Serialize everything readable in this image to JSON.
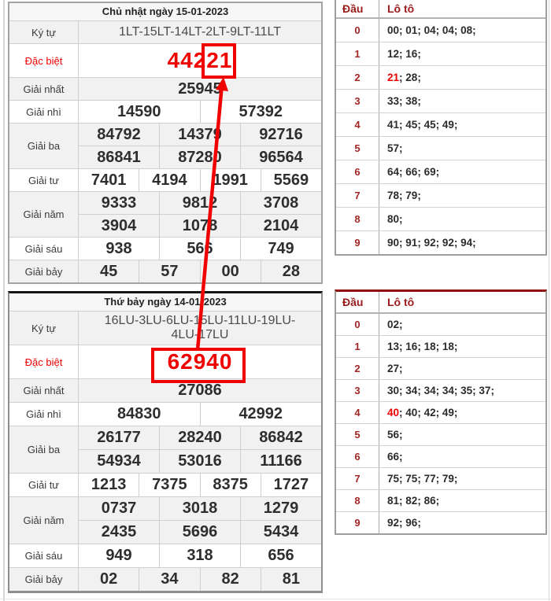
{
  "colors": {
    "annotation_red": "#f10000",
    "special_red": "#f10000",
    "dau_dark_red": "#9a1b1b",
    "bottom_table_top_border": "#8f0e0e"
  },
  "draw_tables": [
    {
      "title": "Chủ nhật ngày 15-01-2023",
      "ky_tu_label": "Ký tự",
      "ky_tu": "1LT-15LT-14LT-2LT-9LT-11LT",
      "rows": [
        {
          "key": "dac-biet",
          "label": "Đặc biệt",
          "special": true,
          "lines": [
            [
              "44221"
            ]
          ]
        },
        {
          "key": "giai-nhat",
          "label": "Giải nhất",
          "lines": [
            [
              "25945"
            ]
          ]
        },
        {
          "key": "giai-nhi",
          "label": "Giải nhì",
          "lines": [
            [
              "14590",
              "57392"
            ]
          ]
        },
        {
          "key": "giai-ba",
          "label": "Giải ba",
          "lines": [
            [
              "84792",
              "14379",
              "92716"
            ],
            [
              "86841",
              "87280",
              "96564"
            ]
          ]
        },
        {
          "key": "giai-tu",
          "label": "Giải tư",
          "lines": [
            [
              "7401",
              "4194",
              "1991",
              "5569"
            ]
          ]
        },
        {
          "key": "giai-nam",
          "label": "Giải năm",
          "lines": [
            [
              "9333",
              "9812",
              "3708"
            ],
            [
              "3904",
              "1078",
              "2104"
            ]
          ]
        },
        {
          "key": "giai-sau",
          "label": "Giải sáu",
          "lines": [
            [
              "938",
              "566",
              "749"
            ]
          ]
        },
        {
          "key": "giai-bay",
          "label": "Giải bảy",
          "lines": [
            [
              "45",
              "57",
              "00",
              "28"
            ]
          ]
        }
      ]
    },
    {
      "title": "Thứ bảy ngày 14-01-2023",
      "ky_tu_label": "Ký tự",
      "ky_tu": "16LU-3LU-6LU-15LU-11LU-19LU-4LU-17LU",
      "rows": [
        {
          "key": "dac-biet",
          "label": "Đặc biệt",
          "special": true,
          "lines": [
            [
              "62940"
            ]
          ]
        },
        {
          "key": "giai-nhat",
          "label": "Giải nhất",
          "lines": [
            [
              "27086"
            ]
          ]
        },
        {
          "key": "giai-nhi",
          "label": "Giải nhì",
          "lines": [
            [
              "84830",
              "42992"
            ]
          ]
        },
        {
          "key": "giai-ba",
          "label": "Giải ba",
          "lines": [
            [
              "26177",
              "28240",
              "86842"
            ],
            [
              "54934",
              "53016",
              "11166"
            ]
          ]
        },
        {
          "key": "giai-tu",
          "label": "Giải tư",
          "lines": [
            [
              "1213",
              "7375",
              "8375",
              "1727"
            ]
          ]
        },
        {
          "key": "giai-nam",
          "label": "Giải năm",
          "lines": [
            [
              "0737",
              "3018",
              "1279"
            ],
            [
              "2435",
              "5696",
              "5434"
            ]
          ]
        },
        {
          "key": "giai-sau",
          "label": "Giải sáu",
          "lines": [
            [
              "949",
              "318",
              "656"
            ]
          ]
        },
        {
          "key": "giai-bay",
          "label": "Giải bảy",
          "lines": [
            [
              "02",
              "34",
              "82",
              "81"
            ]
          ]
        }
      ]
    }
  ],
  "head_tables": [
    {
      "dau_label": "Đầu",
      "loto_label": "Lô tô",
      "rows": [
        {
          "dau": "0",
          "values": [
            {
              "t": "00"
            },
            {
              "t": "01"
            },
            {
              "t": "04"
            },
            {
              "t": "04"
            },
            {
              "t": "08"
            }
          ]
        },
        {
          "dau": "1",
          "values": [
            {
              "t": "12"
            },
            {
              "t": "16"
            }
          ]
        },
        {
          "dau": "2",
          "values": [
            {
              "t": "21",
              "hl": true
            },
            {
              "t": "28"
            }
          ]
        },
        {
          "dau": "3",
          "values": [
            {
              "t": "33"
            },
            {
              "t": "38"
            }
          ]
        },
        {
          "dau": "4",
          "values": [
            {
              "t": "41"
            },
            {
              "t": "45"
            },
            {
              "t": "45"
            },
            {
              "t": "49"
            }
          ]
        },
        {
          "dau": "5",
          "values": [
            {
              "t": "57"
            }
          ]
        },
        {
          "dau": "6",
          "values": [
            {
              "t": "64"
            },
            {
              "t": "66"
            },
            {
              "t": "69"
            }
          ]
        },
        {
          "dau": "7",
          "values": [
            {
              "t": "78"
            },
            {
              "t": "79"
            }
          ]
        },
        {
          "dau": "8",
          "values": [
            {
              "t": "80"
            }
          ]
        },
        {
          "dau": "9",
          "values": [
            {
              "t": "90"
            },
            {
              "t": "91"
            },
            {
              "t": "92"
            },
            {
              "t": "92"
            },
            {
              "t": "94"
            }
          ]
        }
      ]
    },
    {
      "dau_label": "Đầu",
      "loto_label": "Lô tô",
      "rows": [
        {
          "dau": "0",
          "values": [
            {
              "t": "02"
            }
          ]
        },
        {
          "dau": "1",
          "values": [
            {
              "t": "13"
            },
            {
              "t": "16"
            },
            {
              "t": "18"
            },
            {
              "t": "18"
            }
          ]
        },
        {
          "dau": "2",
          "values": [
            {
              "t": "27"
            }
          ]
        },
        {
          "dau": "3",
          "values": [
            {
              "t": "30"
            },
            {
              "t": "34"
            },
            {
              "t": "34"
            },
            {
              "t": "34"
            },
            {
              "t": "35"
            },
            {
              "t": "37"
            }
          ]
        },
        {
          "dau": "4",
          "values": [
            {
              "t": "40",
              "hl": true
            },
            {
              "t": "40"
            },
            {
              "t": "42"
            },
            {
              "t": "49"
            }
          ]
        },
        {
          "dau": "5",
          "values": [
            {
              "t": "56"
            }
          ]
        },
        {
          "dau": "6",
          "values": [
            {
              "t": "66"
            }
          ]
        },
        {
          "dau": "7",
          "values": [
            {
              "t": "75"
            },
            {
              "t": "75"
            },
            {
              "t": "77"
            },
            {
              "t": "79"
            }
          ]
        },
        {
          "dau": "8",
          "values": [
            {
              "t": "81"
            },
            {
              "t": "82"
            },
            {
              "t": "86"
            }
          ]
        },
        {
          "dau": "9",
          "values": [
            {
              "t": "92"
            },
            {
              "t": "96"
            }
          ]
        }
      ]
    }
  ]
}
